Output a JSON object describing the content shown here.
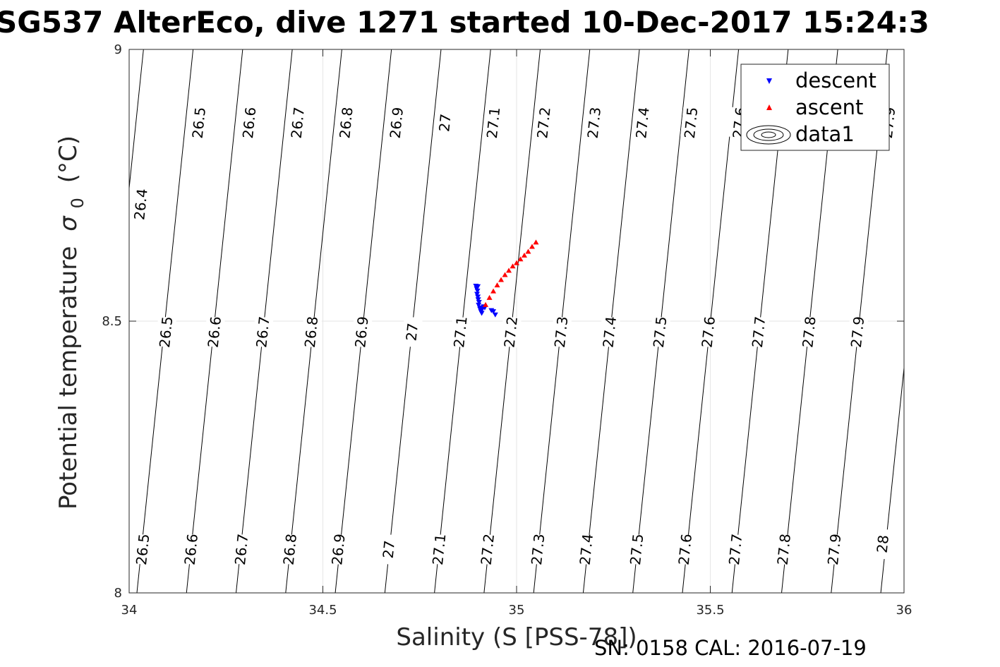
{
  "chart_data": {
    "type": "scatter",
    "title": "SG537 AlterEco, dive 1271 started 10-Dec-2017 15:24:3",
    "xlabel": "Salinity (S [PSS-78])",
    "ylabel_main": "Potential temperature",
    "ylabel_symbol": "σ",
    "ylabel_subscript": "0",
    "ylabel_unit": "(°C)",
    "xlim": [
      34,
      36
    ],
    "ylim": [
      8,
      9
    ],
    "xticks": [
      34,
      34.5,
      35,
      35.5,
      36
    ],
    "xtick_labels": [
      "34",
      "34.5",
      "35",
      "35.5",
      "36"
    ],
    "yticks": [
      8,
      8.5,
      9
    ],
    "ytick_labels": [
      "8",
      "8.5",
      "9"
    ],
    "grid": true,
    "legend_position": "top-right",
    "footer": "SN: 0158  CAL: 2016-07-19",
    "contours": {
      "name": "data1",
      "levels": [
        26.4,
        26.5,
        26.6,
        26.7,
        26.8,
        26.9,
        27.0,
        27.1,
        27.2,
        27.3,
        27.4,
        27.5,
        27.6,
        27.7,
        27.8,
        27.9,
        28.0
      ],
      "salinity_at_T8": [
        null,
        34.02,
        34.148,
        34.276,
        34.404,
        34.532,
        34.66,
        34.788,
        34.916,
        35.044,
        35.172,
        35.3,
        35.428,
        35.556,
        35.684,
        35.812,
        35.94
      ],
      "dS_dT": 0.145,
      "labels": [
        {
          "text": "26.4",
          "s": 34.03,
          "t": 8.715
        },
        {
          "text": "26.5",
          "s": 34.18,
          "t": 8.865
        },
        {
          "text": "26.6",
          "s": 34.31,
          "t": 8.865
        },
        {
          "text": "26.7",
          "s": 34.435,
          "t": 8.865
        },
        {
          "text": "26.8",
          "s": 34.56,
          "t": 8.865
        },
        {
          "text": "26.9",
          "s": 34.69,
          "t": 8.865
        },
        {
          "text": "27",
          "s": 34.815,
          "t": 8.865
        },
        {
          "text": "27.1",
          "s": 34.94,
          "t": 8.865
        },
        {
          "text": "27.2",
          "s": 35.07,
          "t": 8.865
        },
        {
          "text": "27.3",
          "s": 35.2,
          "t": 8.865
        },
        {
          "text": "27.4",
          "s": 35.325,
          "t": 8.865
        },
        {
          "text": "27.5",
          "s": 35.45,
          "t": 8.865
        },
        {
          "text": "27.6",
          "s": 35.575,
          "t": 8.865
        },
        {
          "text": "27.9",
          "s": 35.96,
          "t": 8.865
        },
        {
          "text": "26.5",
          "s": 34.095,
          "t": 8.48
        },
        {
          "text": "26.6",
          "s": 34.22,
          "t": 8.48
        },
        {
          "text": "26.7",
          "s": 34.345,
          "t": 8.48
        },
        {
          "text": "26.8",
          "s": 34.47,
          "t": 8.48
        },
        {
          "text": "26.9",
          "s": 34.6,
          "t": 8.48
        },
        {
          "text": "27",
          "s": 34.73,
          "t": 8.48
        },
        {
          "text": "27.1",
          "s": 34.855,
          "t": 8.48
        },
        {
          "text": "27.2",
          "s": 34.985,
          "t": 8.48
        },
        {
          "text": "27.3",
          "s": 35.115,
          "t": 8.48
        },
        {
          "text": "27.4",
          "s": 35.24,
          "t": 8.48
        },
        {
          "text": "27.5",
          "s": 35.37,
          "t": 8.48
        },
        {
          "text": "27.6",
          "s": 35.495,
          "t": 8.48
        },
        {
          "text": "27.7",
          "s": 35.625,
          "t": 8.48
        },
        {
          "text": "27.8",
          "s": 35.755,
          "t": 8.48
        },
        {
          "text": "27.9",
          "s": 35.88,
          "t": 8.48
        },
        {
          "text": "26.5",
          "s": 34.035,
          "t": 8.08
        },
        {
          "text": "26.6",
          "s": 34.16,
          "t": 8.08
        },
        {
          "text": "26.7",
          "s": 34.29,
          "t": 8.08
        },
        {
          "text": "26.8",
          "s": 34.415,
          "t": 8.08
        },
        {
          "text": "26.9",
          "s": 34.54,
          "t": 8.08
        },
        {
          "text": "27",
          "s": 34.67,
          "t": 8.08
        },
        {
          "text": "27.1",
          "s": 34.8,
          "t": 8.08
        },
        {
          "text": "27.2",
          "s": 34.925,
          "t": 8.08
        },
        {
          "text": "27.3",
          "s": 35.055,
          "t": 8.08
        },
        {
          "text": "27.4",
          "s": 35.18,
          "t": 8.08
        },
        {
          "text": "27.5",
          "s": 35.31,
          "t": 8.08
        },
        {
          "text": "27.6",
          "s": 35.435,
          "t": 8.08
        },
        {
          "text": "27.7",
          "s": 35.565,
          "t": 8.08
        },
        {
          "text": "27.8",
          "s": 35.69,
          "t": 8.08
        },
        {
          "text": "27.9",
          "s": 35.82,
          "t": 8.08
        },
        {
          "text": "28",
          "s": 35.945,
          "t": 8.09
        }
      ]
    },
    "series": [
      {
        "name": "descent",
        "marker": "triangle-down",
        "color": "#0000ff",
        "points": [
          [
            34.895,
            8.565
          ],
          [
            34.9,
            8.564
          ],
          [
            34.897,
            8.56
          ],
          [
            34.899,
            8.556
          ],
          [
            34.898,
            8.55
          ],
          [
            34.9,
            8.545
          ],
          [
            34.901,
            8.54
          ],
          [
            34.903,
            8.535
          ],
          [
            34.902,
            8.53
          ],
          [
            34.905,
            8.525
          ],
          [
            34.906,
            8.522
          ],
          [
            34.908,
            8.518
          ],
          [
            34.909,
            8.52
          ],
          [
            34.912,
            8.523
          ],
          [
            34.915,
            8.527
          ],
          [
            34.918,
            8.525
          ],
          [
            34.91,
            8.515
          ],
          [
            34.935,
            8.52
          ],
          [
            34.94,
            8.518
          ],
          [
            34.945,
            8.512
          ]
        ]
      },
      {
        "name": "ascent",
        "marker": "triangle-up",
        "color": "#ff0000",
        "points": [
          [
            34.92,
            8.53
          ],
          [
            34.93,
            8.543
          ],
          [
            34.94,
            8.555
          ],
          [
            34.95,
            8.566
          ],
          [
            34.96,
            8.576
          ],
          [
            34.97,
            8.585
          ],
          [
            34.98,
            8.593
          ],
          [
            34.99,
            8.601
          ],
          [
            35.0,
            8.607
          ],
          [
            35.01,
            8.614
          ],
          [
            35.02,
            8.621
          ],
          [
            35.03,
            8.628
          ],
          [
            35.04,
            8.637
          ],
          [
            35.05,
            8.645
          ]
        ]
      }
    ]
  }
}
